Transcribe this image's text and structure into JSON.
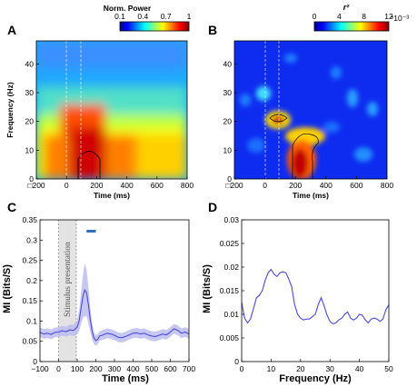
{
  "colors": {
    "line": "#4b4bd6",
    "band": "#b9b9f0",
    "sig_bar": "#2a6fb8",
    "stim_box": "#e3e3e3",
    "axis": "#000000"
  },
  "chart_data": [
    {
      "panel": "A",
      "type": "heatmap",
      "colorbar": {
        "label": "Norm. Power",
        "ticks": [
          "0.1",
          "0.4",
          "0.7",
          "1"
        ],
        "range": [
          0.1,
          1
        ]
      },
      "xlabel": "Time (ms)",
      "ylabel": "Frequency (Hz)",
      "xlim": [
        -200,
        800
      ],
      "ylim": [
        0,
        48
      ],
      "xticks": [
        "□200",
        "0",
        "200",
        "400",
        "600",
        "800"
      ],
      "yticks": [
        "0",
        "10",
        "20",
        "30",
        "40"
      ],
      "summary": "High normalized power (~1) at 0-20 Hz between 0 and 300 ms; low power (~0.2) above 30 Hz"
    },
    {
      "panel": "B",
      "type": "heatmap",
      "colorbar": {
        "label": "r²",
        "ticks": [
          "0",
          "4",
          "8",
          "12"
        ],
        "range": [
          0,
          12
        ],
        "exponent": "*10⁻³"
      },
      "xlabel": "Time (ms)",
      "ylabel": "",
      "xlim": [
        -200,
        800
      ],
      "ylim": [
        0,
        48
      ],
      "xticks": [
        "□200",
        "0",
        "200",
        "400",
        "600",
        "800"
      ],
      "yticks": [
        "0",
        "10",
        "20",
        "30",
        "40"
      ],
      "summary": "Peak r² (~12e-3) at 0-15 Hz, 150-300 ms; secondary peak ~19 Hz near 50 ms"
    },
    {
      "panel": "C",
      "type": "line",
      "xlabel": "Time (ms)",
      "ylabel": "MI (Bits/S)",
      "xlim": [
        -100,
        700
      ],
      "ylim": [
        0,
        0.35
      ],
      "xticks": [
        "−100",
        "0",
        "100",
        "200",
        "300",
        "400",
        "500",
        "600",
        "700"
      ],
      "yticks": [
        "0",
        "0.05",
        "0.1",
        "0.15",
        "0.2",
        "0.25",
        "0.3",
        "0.35"
      ],
      "annotation": "Stimulus presentation",
      "stimulus_window": [
        0,
        95
      ],
      "significance_bar": [
        150,
        200
      ],
      "significance_y": 0.322,
      "x": [
        -100,
        -80,
        -60,
        -40,
        -20,
        0,
        20,
        40,
        60,
        80,
        100,
        110,
        120,
        130,
        140,
        150,
        160,
        170,
        180,
        190,
        200,
        210,
        220,
        240,
        260,
        280,
        300,
        320,
        340,
        360,
        380,
        400,
        420,
        440,
        460,
        480,
        500,
        520,
        540,
        560,
        580,
        600,
        620,
        640,
        660,
        680,
        700
      ],
      "y": [
        0.072,
        0.068,
        0.07,
        0.067,
        0.072,
        0.073,
        0.076,
        0.074,
        0.078,
        0.077,
        0.085,
        0.1,
        0.13,
        0.16,
        0.177,
        0.17,
        0.14,
        0.105,
        0.075,
        0.058,
        0.052,
        0.055,
        0.063,
        0.066,
        0.07,
        0.068,
        0.065,
        0.06,
        0.059,
        0.062,
        0.066,
        0.07,
        0.071,
        0.068,
        0.07,
        0.066,
        0.063,
        0.062,
        0.065,
        0.068,
        0.066,
        0.073,
        0.081,
        0.077,
        0.07,
        0.073,
        0.068
      ],
      "band": [
        0.012,
        0.012,
        0.012,
        0.012,
        0.012,
        0.012,
        0.012,
        0.012,
        0.013,
        0.014,
        0.018,
        0.025,
        0.038,
        0.052,
        0.065,
        0.058,
        0.045,
        0.03,
        0.02,
        0.015,
        0.013,
        0.012,
        0.012,
        0.012,
        0.012,
        0.012,
        0.012,
        0.012,
        0.012,
        0.012,
        0.012,
        0.012,
        0.012,
        0.012,
        0.012,
        0.012,
        0.012,
        0.012,
        0.012,
        0.012,
        0.012,
        0.012,
        0.012,
        0.012,
        0.012,
        0.012,
        0.012
      ]
    },
    {
      "panel": "D",
      "type": "line",
      "xlabel": "Frequency (Hz)",
      "ylabel": "MI (Bits/S)",
      "xlim": [
        0,
        50
      ],
      "ylim": [
        0,
        0.03
      ],
      "xticks": [
        "0",
        "10",
        "20",
        "30",
        "40",
        "50"
      ],
      "yticks": [
        "0",
        "0.005",
        "0.01",
        "0.015",
        "0.02",
        "0.025",
        "0.03"
      ],
      "x": [
        0,
        1,
        2,
        3,
        4,
        5,
        6,
        7,
        8,
        9,
        10,
        11,
        12,
        13,
        14,
        15,
        16,
        17,
        18,
        19,
        20,
        21,
        22,
        23,
        24,
        25,
        26,
        27,
        28,
        29,
        30,
        31,
        32,
        33,
        34,
        35,
        36,
        37,
        38,
        39,
        40,
        41,
        42,
        43,
        44,
        45,
        46,
        47,
        48,
        49,
        50
      ],
      "y": [
        0.0125,
        0.0092,
        0.0082,
        0.009,
        0.0112,
        0.0135,
        0.014,
        0.015,
        0.0172,
        0.0188,
        0.0195,
        0.0185,
        0.018,
        0.0188,
        0.019,
        0.0188,
        0.0175,
        0.0158,
        0.012,
        0.01,
        0.0092,
        0.0088,
        0.009,
        0.009,
        0.0095,
        0.01,
        0.012,
        0.0135,
        0.0118,
        0.0098,
        0.0085,
        0.008,
        0.0082,
        0.0088,
        0.0092,
        0.01,
        0.0105,
        0.0092,
        0.0088,
        0.0092,
        0.01,
        0.0098,
        0.0088,
        0.0082,
        0.009,
        0.0092,
        0.009,
        0.0085,
        0.009,
        0.011,
        0.012
      ]
    }
  ]
}
